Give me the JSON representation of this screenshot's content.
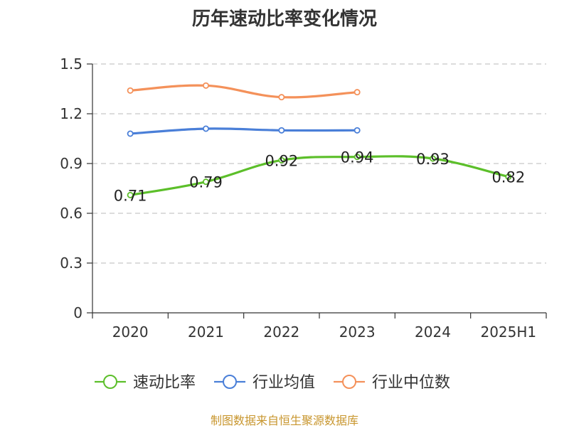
{
  "title": "历年速动比率变化情况",
  "source": "制图数据来自恒生聚源数据库",
  "colors": {
    "series_0": "#5cbf2a",
    "series_1": "#4a7fd8",
    "series_2": "#f4915a",
    "grid": "#c8c8c8",
    "axis": "#333333"
  },
  "chart_data": {
    "type": "line",
    "title": "历年速动比率变化情况",
    "categories": [
      "2020",
      "2021",
      "2022",
      "2023",
      "2024",
      "2025H1"
    ],
    "ylim": [
      0,
      1.5
    ],
    "yticks": [
      "0",
      "0.3",
      "0.6",
      "0.9",
      "1.2",
      "1.5"
    ],
    "grid": true,
    "legend_position": "bottom",
    "series": [
      {
        "name": "速动比率",
        "values": [
          0.71,
          0.79,
          0.92,
          0.94,
          0.93,
          0.82
        ],
        "labels": [
          "0.71",
          "0.79",
          "0.92",
          "0.94",
          "0.93",
          "0.82"
        ],
        "show_labels": true
      },
      {
        "name": "行业均值",
        "values": [
          1.08,
          1.11,
          1.1,
          1.1,
          null,
          null
        ],
        "show_labels": false
      },
      {
        "name": "行业中位数",
        "values": [
          1.34,
          1.37,
          1.3,
          1.33,
          null,
          null
        ],
        "show_labels": false
      }
    ]
  }
}
